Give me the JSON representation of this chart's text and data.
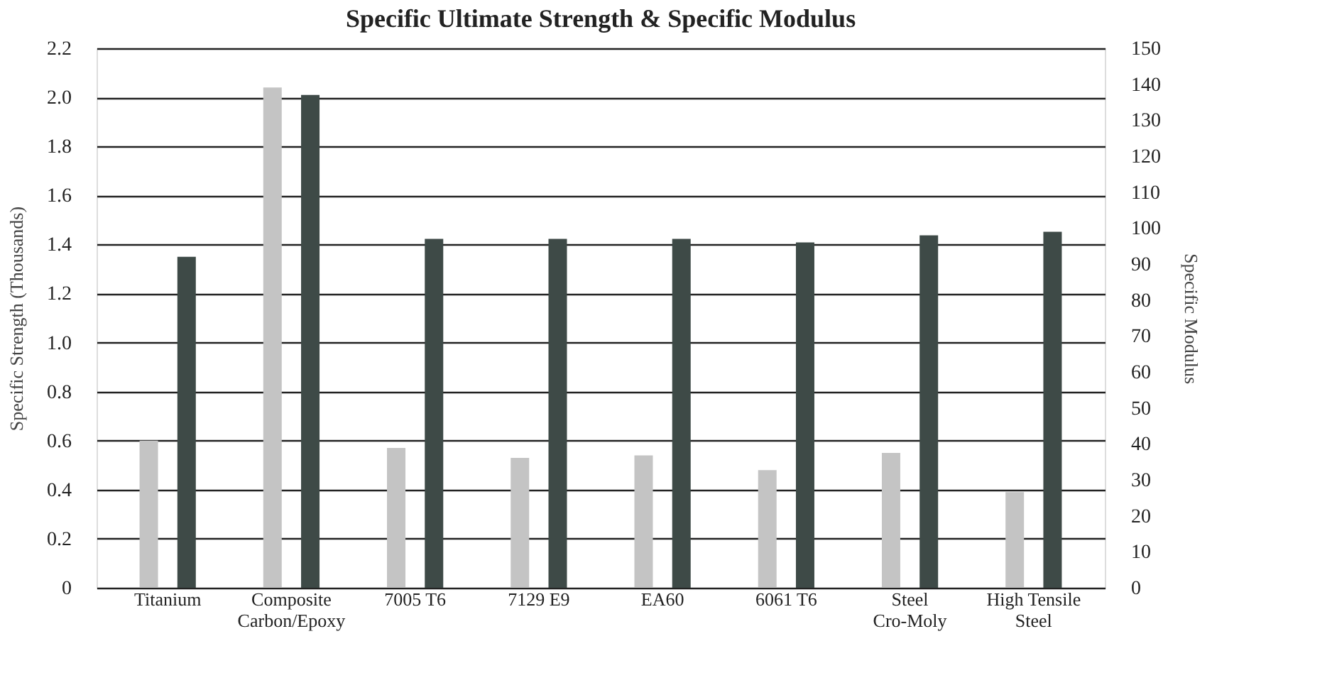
{
  "chart_data": {
    "type": "bar",
    "title": "Specific Ultimate Strength & Specific Modulus",
    "categories": [
      "Titanium",
      "Composite\nCarbon/Epoxy",
      "7005 T6",
      "7129 E9",
      "EA60",
      "6061 T6",
      "Steel\nCro-Moly",
      "High Tensile\nSteel"
    ],
    "series": [
      {
        "color": "#c4c4c4",
        "values": [
          0.6,
          2.04,
          0.57,
          0.53,
          0.54,
          0.48,
          0.55,
          0.39
        ]
      },
      {
        "color": "#3e4a47",
        "axis": "y2",
        "values": [
          92,
          137,
          97,
          97,
          97,
          96,
          98,
          99
        ]
      }
    ],
    "ylabel": "Specific Strength (Thousands)",
    "y2label": "Specific Modulus",
    "ylim": [
      0,
      2.2
    ],
    "yticks": [
      {
        "value": 0,
        "label": "0"
      },
      0.2,
      0.4,
      0.6,
      0.8,
      {
        "value": 1,
        "label": "1.0"
      },
      1.2,
      1.4,
      1.6,
      1.8,
      {
        "value": 2,
        "label": "2.0"
      },
      2.2
    ],
    "y2lim": [
      0,
      150
    ],
    "y2ticks": [
      0,
      10,
      20,
      30,
      40,
      50,
      60,
      70,
      80,
      90,
      100,
      110,
      120,
      130,
      140,
      150
    ],
    "grid": "y"
  }
}
